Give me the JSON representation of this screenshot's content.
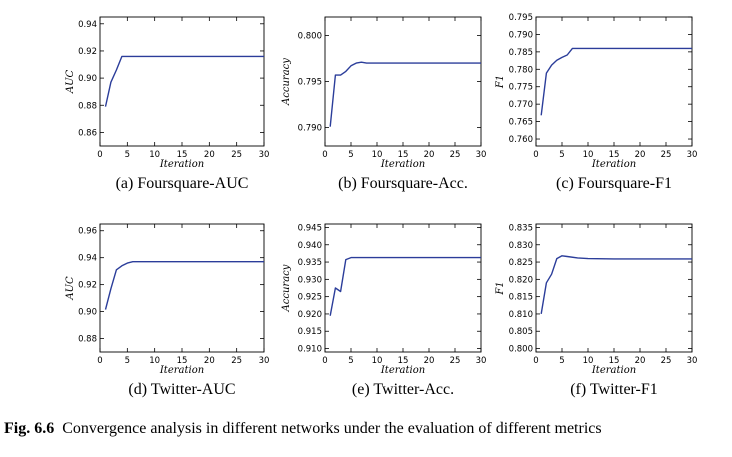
{
  "caption": {
    "label": "Fig. 6.6",
    "text": "Convergence analysis in different networks under the evaluation of different metrics"
  },
  "colors": {
    "line": "#2b3d9a",
    "axis": "#000000"
  },
  "chart_data": [
    {
      "type": "line",
      "subcaption": "(a) Foursquare-AUC",
      "xlabel": "Iteration",
      "ylabel": "AUC",
      "xlim": [
        0,
        30
      ],
      "ylim": [
        0.85,
        0.945
      ],
      "xticks": [
        0,
        5,
        10,
        15,
        20,
        25,
        30
      ],
      "yticks": [
        0.86,
        0.88,
        0.9,
        0.92,
        0.94
      ],
      "ytick_labels": [
        "0.86",
        "0.88",
        "0.90",
        "0.92",
        "0.94"
      ],
      "x": [
        1,
        2,
        3,
        4,
        5,
        6,
        8,
        10,
        15,
        20,
        25,
        30
      ],
      "y": [
        0.879,
        0.897,
        0.906,
        0.916,
        0.916,
        0.916,
        0.916,
        0.916,
        0.916,
        0.916,
        0.916,
        0.916
      ]
    },
    {
      "type": "line",
      "subcaption": "(b) Foursquare-Acc.",
      "xlabel": "Iteration",
      "ylabel": "Accuracy",
      "xlim": [
        0,
        30
      ],
      "ylim": [
        0.788,
        0.802
      ],
      "xticks": [
        0,
        5,
        10,
        15,
        20,
        25,
        30
      ],
      "yticks": [
        0.79,
        0.795,
        0.8
      ],
      "ytick_labels": [
        "0.790",
        "0.795",
        "0.800"
      ],
      "x": [
        1,
        2,
        3,
        4,
        5,
        6,
        7,
        8,
        10,
        15,
        20,
        25,
        30
      ],
      "y": [
        0.7901,
        0.7957,
        0.7957,
        0.7961,
        0.7967,
        0.797,
        0.7971,
        0.797,
        0.797,
        0.797,
        0.797,
        0.797,
        0.797
      ]
    },
    {
      "type": "line",
      "subcaption": "(c) Foursquare-F1",
      "xlabel": "Iteration",
      "ylabel": "F1",
      "xlim": [
        0,
        30
      ],
      "ylim": [
        0.758,
        0.795
      ],
      "xticks": [
        0,
        5,
        10,
        15,
        20,
        25,
        30
      ],
      "yticks": [
        0.76,
        0.765,
        0.77,
        0.775,
        0.78,
        0.785,
        0.79,
        0.795
      ],
      "ytick_labels": [
        "0.760",
        "0.765",
        "0.770",
        "0.775",
        "0.780",
        "0.785",
        "0.790",
        "0.795"
      ],
      "x": [
        1,
        2,
        3,
        4,
        5,
        6,
        7,
        8,
        10,
        15,
        20,
        25,
        30
      ],
      "y": [
        0.7668,
        0.7789,
        0.7812,
        0.7826,
        0.7834,
        0.7841,
        0.786,
        0.786,
        0.786,
        0.786,
        0.786,
        0.786,
        0.786
      ]
    },
    {
      "type": "line",
      "subcaption": "(d) Twitter-AUC",
      "xlabel": "Iteration",
      "ylabel": "AUC",
      "xlim": [
        0,
        30
      ],
      "ylim": [
        0.87,
        0.965
      ],
      "xticks": [
        0,
        5,
        10,
        15,
        20,
        25,
        30
      ],
      "yticks": [
        0.88,
        0.9,
        0.92,
        0.94,
        0.96
      ],
      "ytick_labels": [
        "0.88",
        "0.90",
        "0.92",
        "0.94",
        "0.96"
      ],
      "x": [
        1,
        2,
        3,
        4,
        5,
        6,
        7,
        8,
        10,
        15,
        20,
        25,
        30
      ],
      "y": [
        0.9015,
        0.917,
        0.931,
        0.934,
        0.936,
        0.937,
        0.937,
        0.937,
        0.937,
        0.937,
        0.937,
        0.937,
        0.937
      ]
    },
    {
      "type": "line",
      "subcaption": "(e) Twitter-Acc.",
      "xlabel": "Iteration",
      "ylabel": "Accuracy",
      "xlim": [
        0,
        30
      ],
      "ylim": [
        0.909,
        0.946
      ],
      "xticks": [
        0,
        5,
        10,
        15,
        20,
        25,
        30
      ],
      "yticks": [
        0.91,
        0.915,
        0.92,
        0.925,
        0.93,
        0.935,
        0.94,
        0.945
      ],
      "ytick_labels": [
        "0.910",
        "0.915",
        "0.920",
        "0.925",
        "0.930",
        "0.935",
        "0.940",
        "0.945"
      ],
      "x": [
        1,
        2,
        3,
        4,
        5,
        6,
        8,
        10,
        15,
        20,
        25,
        30
      ],
      "y": [
        0.9195,
        0.9275,
        0.9265,
        0.9357,
        0.9363,
        0.9363,
        0.9363,
        0.9363,
        0.9363,
        0.9363,
        0.9363,
        0.9363
      ]
    },
    {
      "type": "line",
      "subcaption": "(f) Twitter-F1",
      "xlabel": "Iteration",
      "ylabel": "F1",
      "xlim": [
        0,
        30
      ],
      "ylim": [
        0.799,
        0.836
      ],
      "xticks": [
        0,
        5,
        10,
        15,
        20,
        25,
        30
      ],
      "yticks": [
        0.8,
        0.805,
        0.81,
        0.815,
        0.82,
        0.825,
        0.83,
        0.835
      ],
      "ytick_labels": [
        "0.800",
        "0.805",
        "0.810",
        "0.815",
        "0.820",
        "0.825",
        "0.830",
        "0.835"
      ],
      "x": [
        1,
        2,
        3,
        4,
        5,
        6,
        8,
        10,
        15,
        20,
        25,
        30
      ],
      "y": [
        0.81,
        0.819,
        0.8215,
        0.826,
        0.8268,
        0.8266,
        0.8262,
        0.826,
        0.8259,
        0.8259,
        0.8259,
        0.8259
      ]
    }
  ]
}
